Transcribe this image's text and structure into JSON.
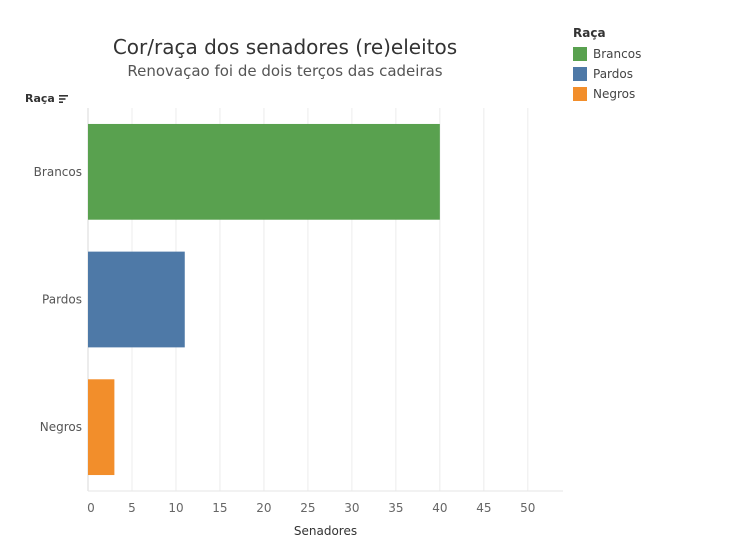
{
  "chart_data": {
    "type": "bar",
    "orientation": "horizontal",
    "title": "Cor/raça dos senadores (re)eleitos",
    "subtitle": "Renovaçao foi de dois terços das cadeiras",
    "categories": [
      "Brancos",
      "Pardos",
      "Negros"
    ],
    "values": [
      40,
      11,
      3
    ],
    "colors": [
      "#59a14f",
      "#4e79a7",
      "#f28e2b"
    ],
    "xlabel": "Senadores",
    "ylabel": "Raça",
    "xlim": [
      0,
      54
    ],
    "xticks": [
      0,
      5,
      10,
      15,
      20,
      25,
      30,
      35,
      40,
      45,
      50
    ],
    "grid": "vertical",
    "legend": {
      "title": "Raça",
      "placement": "top-right",
      "items": [
        {
          "label": "Brancos",
          "color": "#59a14f"
        },
        {
          "label": "Pardos",
          "color": "#4e79a7"
        },
        {
          "label": "Negros",
          "color": "#f28e2b"
        }
      ]
    }
  },
  "icons": {
    "sort": "sort-descending-icon"
  }
}
